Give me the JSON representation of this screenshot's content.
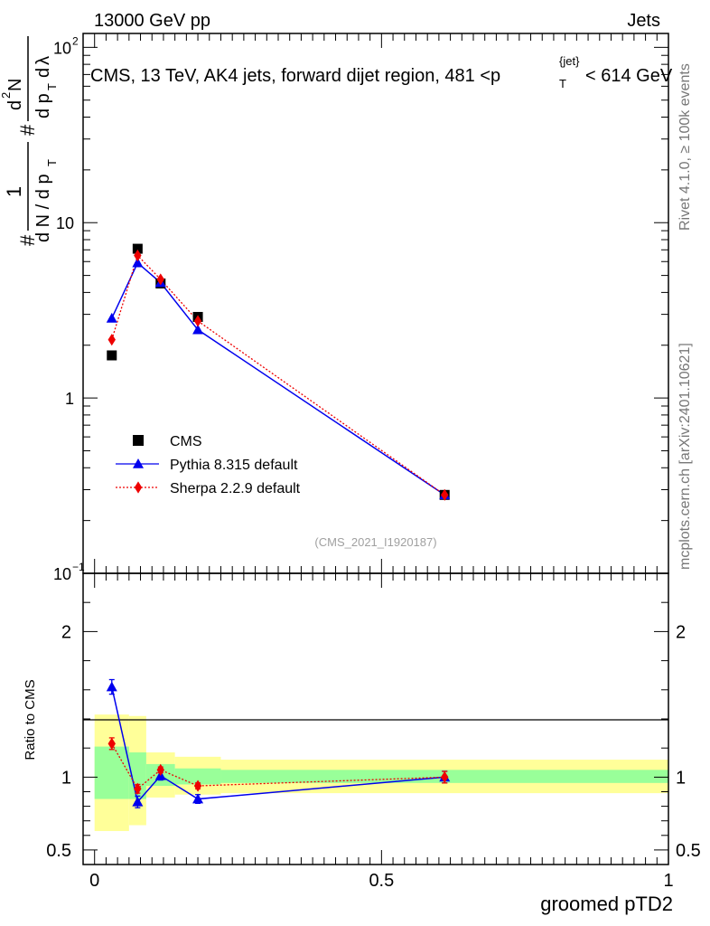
{
  "header": {
    "energy_label": "13000 GeV pp",
    "process_label": "Jets",
    "title": "CMS, 13 TeV, AK4 jets, forward dijet region, 481 <p",
    "title_sup": "{jet}",
    "title_sub": "T",
    "title_end": "< 614 GeV"
  },
  "side_labels": {
    "rivet": "Rivet 4.1.0, ≥ 100k events",
    "mcplots": "mcplots.cern.ch [arXiv:2401.10621]"
  },
  "watermark": "(CMS_2021_I1920187)",
  "chart_data": [
    {
      "type": "scatter",
      "title": "CMS, 13 TeV, AK4 jets, forward dijet region, 481 < pT^{jet} < 614 GeV",
      "ylabel": "1/dN/dpT  d²N/dpT dλ",
      "yscale": "log",
      "ylim": [
        0.1,
        120
      ],
      "xlim": [
        -0.02,
        1.0
      ],
      "y_ticks": [
        {
          "value": 0.1,
          "label": "10",
          "sup": "−1"
        },
        {
          "value": 1,
          "label": "1",
          "sup": ""
        },
        {
          "value": 10,
          "label": "10",
          "sup": ""
        },
        {
          "value": 100,
          "label": "10",
          "sup": "2"
        }
      ],
      "series": [
        {
          "name": "CMS",
          "color": "#000000",
          "marker": "square",
          "x": [
            0.03,
            0.075,
            0.115,
            0.18,
            0.61
          ],
          "y": [
            1.75,
            7.1,
            4.5,
            2.9,
            0.28
          ]
        },
        {
          "name": "Pythia 8.315 default",
          "color": "#0000ee",
          "marker": "triangle",
          "line": "solid",
          "x": [
            0.03,
            0.075,
            0.115,
            0.18,
            0.61
          ],
          "y": [
            2.85,
            5.9,
            4.55,
            2.45,
            0.28
          ]
        },
        {
          "name": "Sherpa 2.2.9 default",
          "color": "#ee0000",
          "marker": "diamond",
          "line": "dotted",
          "x": [
            0.03,
            0.075,
            0.115,
            0.18,
            0.61
          ],
          "y": [
            2.15,
            6.5,
            4.75,
            2.75,
            0.28
          ]
        }
      ]
    },
    {
      "type": "line",
      "ylabel": "Ratio to CMS",
      "xlabel": "groomed pTD2",
      "ylim": [
        0.4,
        2.4
      ],
      "xlim": [
        -0.02,
        1.0
      ],
      "x_ticks": [
        {
          "value": 0,
          "label": "0"
        },
        {
          "value": 0.5,
          "label": "0.5"
        },
        {
          "value": 1,
          "label": "1"
        }
      ],
      "y_ticks": [
        {
          "value": 0.5,
          "label": "0.5"
        },
        {
          "value": 1,
          "label": "1"
        },
        {
          "value": 2,
          "label": "2"
        }
      ],
      "uncertainty_bands": [
        {
          "x0": 0.0,
          "x1": 0.06,
          "yellow": [
            0.63,
            1.43
          ],
          "green": [
            0.85,
            1.21
          ]
        },
        {
          "x0": 0.06,
          "x1": 0.09,
          "yellow": [
            0.67,
            1.42
          ],
          "green": [
            0.85,
            1.17
          ]
        },
        {
          "x0": 0.09,
          "x1": 0.14,
          "yellow": [
            0.86,
            1.17
          ],
          "green": [
            0.94,
            1.09
          ]
        },
        {
          "x0": 0.14,
          "x1": 0.22,
          "yellow": [
            0.88,
            1.14
          ],
          "green": [
            0.95,
            1.06
          ]
        },
        {
          "x0": 0.22,
          "x1": 1.0,
          "yellow": [
            0.89,
            1.12
          ],
          "green": [
            0.96,
            1.05
          ]
        }
      ],
      "series": [
        {
          "name": "Pythia 8.315 default",
          "color": "#0000ee",
          "marker": "triangle",
          "line": "solid",
          "x": [
            0.03,
            0.075,
            0.115,
            0.18,
            0.61
          ],
          "y": [
            1.62,
            0.83,
            1.01,
            0.85,
            1.0
          ],
          "err": [
            0.05,
            0.04,
            0.03,
            0.03,
            0.04
          ]
        },
        {
          "name": "Sherpa 2.2.9 default",
          "color": "#ee0000",
          "marker": "diamond",
          "line": "dotted",
          "x": [
            0.03,
            0.075,
            0.115,
            0.18,
            0.61
          ],
          "y": [
            1.23,
            0.92,
            1.05,
            0.94,
            1.0
          ],
          "err": [
            0.04,
            0.03,
            0.02,
            0.02,
            0.04
          ]
        }
      ]
    }
  ]
}
